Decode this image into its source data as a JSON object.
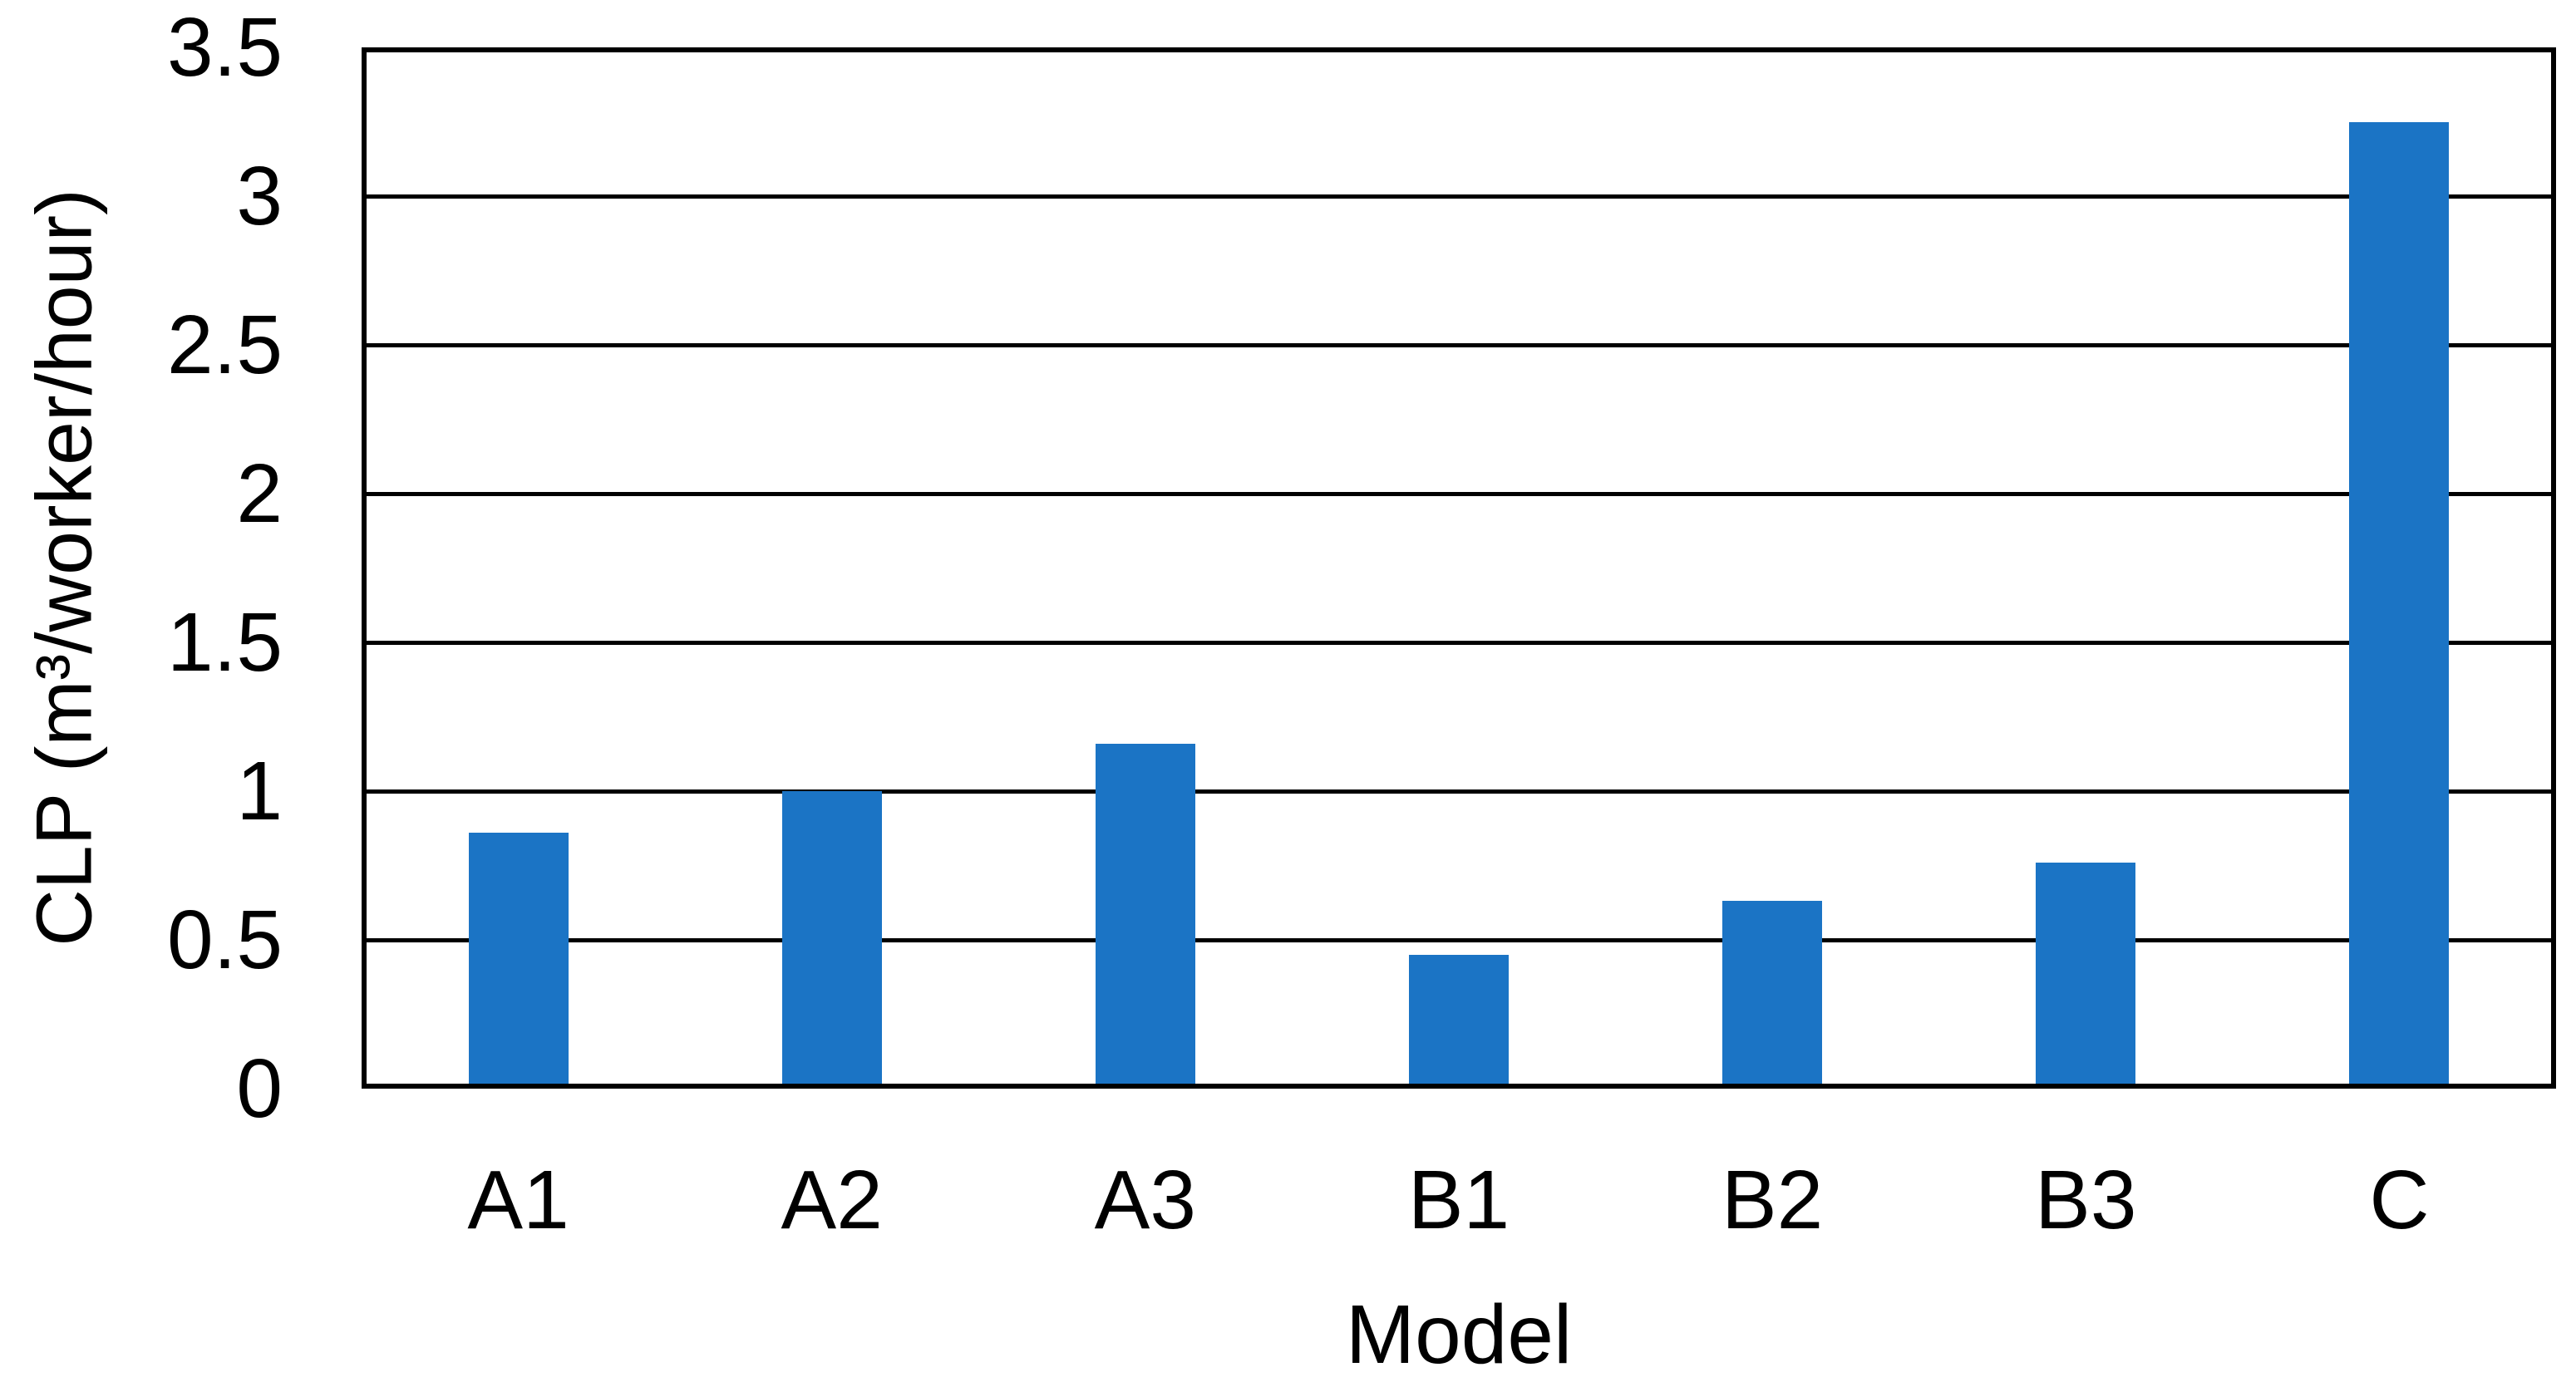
{
  "chart_data": {
    "type": "bar",
    "title": "",
    "xlabel": "Model",
    "ylabel": "CLP (m³/worker/hour)",
    "categories": [
      "A1",
      "A2",
      "A3",
      "B1",
      "B2",
      "B3",
      "C"
    ],
    "values": [
      0.86,
      1.0,
      1.16,
      0.45,
      0.63,
      0.76,
      3.25
    ],
    "ylim": [
      0,
      3.5
    ],
    "yticks": [
      0,
      0.5,
      1,
      1.5,
      2,
      2.5,
      3,
      3.5
    ],
    "ytick_labels": [
      "0",
      "0.5",
      "1",
      "1.5",
      "2",
      "2.5",
      "3",
      "3.5"
    ],
    "grid": "horizontal",
    "legend": "none",
    "bar_color": "#1B74C5",
    "axis_color": "#000000",
    "text_color": "#000000",
    "background": "#FFFFFF"
  }
}
